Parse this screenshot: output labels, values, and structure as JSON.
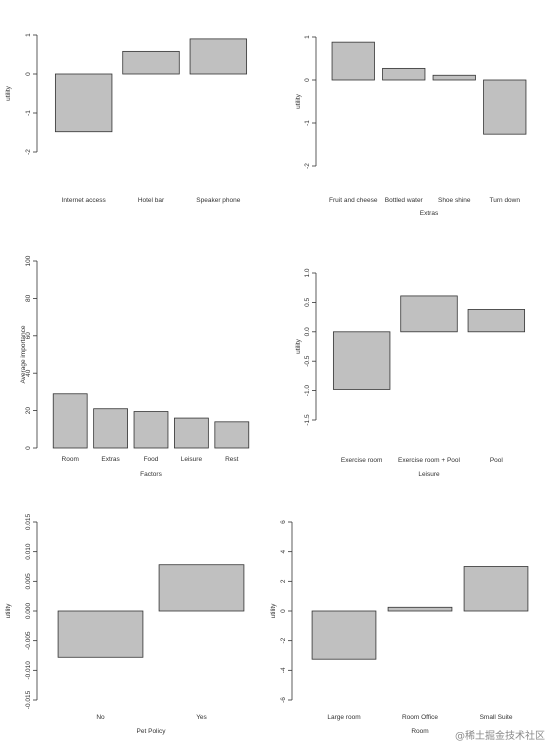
{
  "chart_data": [
    {
      "type": "bar",
      "categories": [
        "Internet access",
        "Hotel bar",
        "Speaker phone"
      ],
      "values": [
        -1.48,
        0.58,
        0.9
      ],
      "xlabel": "",
      "ylabel": "utility",
      "ylim": [
        -2,
        1
      ],
      "yticks": [
        1,
        0,
        -1,
        -2
      ],
      "grid": false
    },
    {
      "type": "bar",
      "categories": [
        "Fruit and cheese",
        "Bottled water",
        "Shoe shine",
        "Turn down"
      ],
      "values": [
        0.88,
        0.27,
        0.11,
        -1.26
      ],
      "xlabel": "Extras",
      "ylabel": "utility",
      "ylim": [
        -2,
        1
      ],
      "yticks": [
        1,
        0,
        -1,
        -2
      ],
      "grid": false
    },
    {
      "type": "bar",
      "categories": [
        "Room",
        "Extras",
        "Food",
        "Leisure",
        "Rest"
      ],
      "values": [
        29,
        21,
        19.5,
        16,
        14
      ],
      "xlabel": "Factors",
      "ylabel": "Average importance",
      "ylim": [
        0,
        100
      ],
      "yticks": [
        100,
        80,
        60,
        40,
        20,
        0
      ],
      "grid": false
    },
    {
      "type": "bar",
      "categories": [
        "Exercise room",
        "Exercise room + Pool",
        "Pool"
      ],
      "values": [
        -0.98,
        0.61,
        0.38
      ],
      "xlabel": "Leisure",
      "ylabel": "utility",
      "ylim": [
        -1.5,
        1
      ],
      "yticks": [
        1.0,
        0.5,
        0.0,
        -0.5,
        -1.0,
        -1.5
      ],
      "grid": false
    },
    {
      "type": "bar",
      "categories": [
        "No",
        "Yes"
      ],
      "values": [
        -0.0078,
        0.0078
      ],
      "xlabel": "Pet Policy",
      "ylabel": "utility",
      "ylim": [
        -0.015,
        0.015
      ],
      "yticks": [
        0.015,
        0.01,
        0.005,
        0.0,
        -0.005,
        -0.01,
        -0.015
      ],
      "grid": false
    },
    {
      "type": "bar",
      "categories": [
        "Large room",
        "Room Office",
        "Small Suite"
      ],
      "values": [
        -3.25,
        0.25,
        3.0
      ],
      "xlabel": "Room",
      "ylabel": "utility",
      "ylim": [
        -6,
        6
      ],
      "yticks": [
        6,
        4,
        2,
        0,
        -2,
        -4,
        -6
      ],
      "grid": false
    }
  ],
  "watermark": "@稀土掘金技术社区"
}
